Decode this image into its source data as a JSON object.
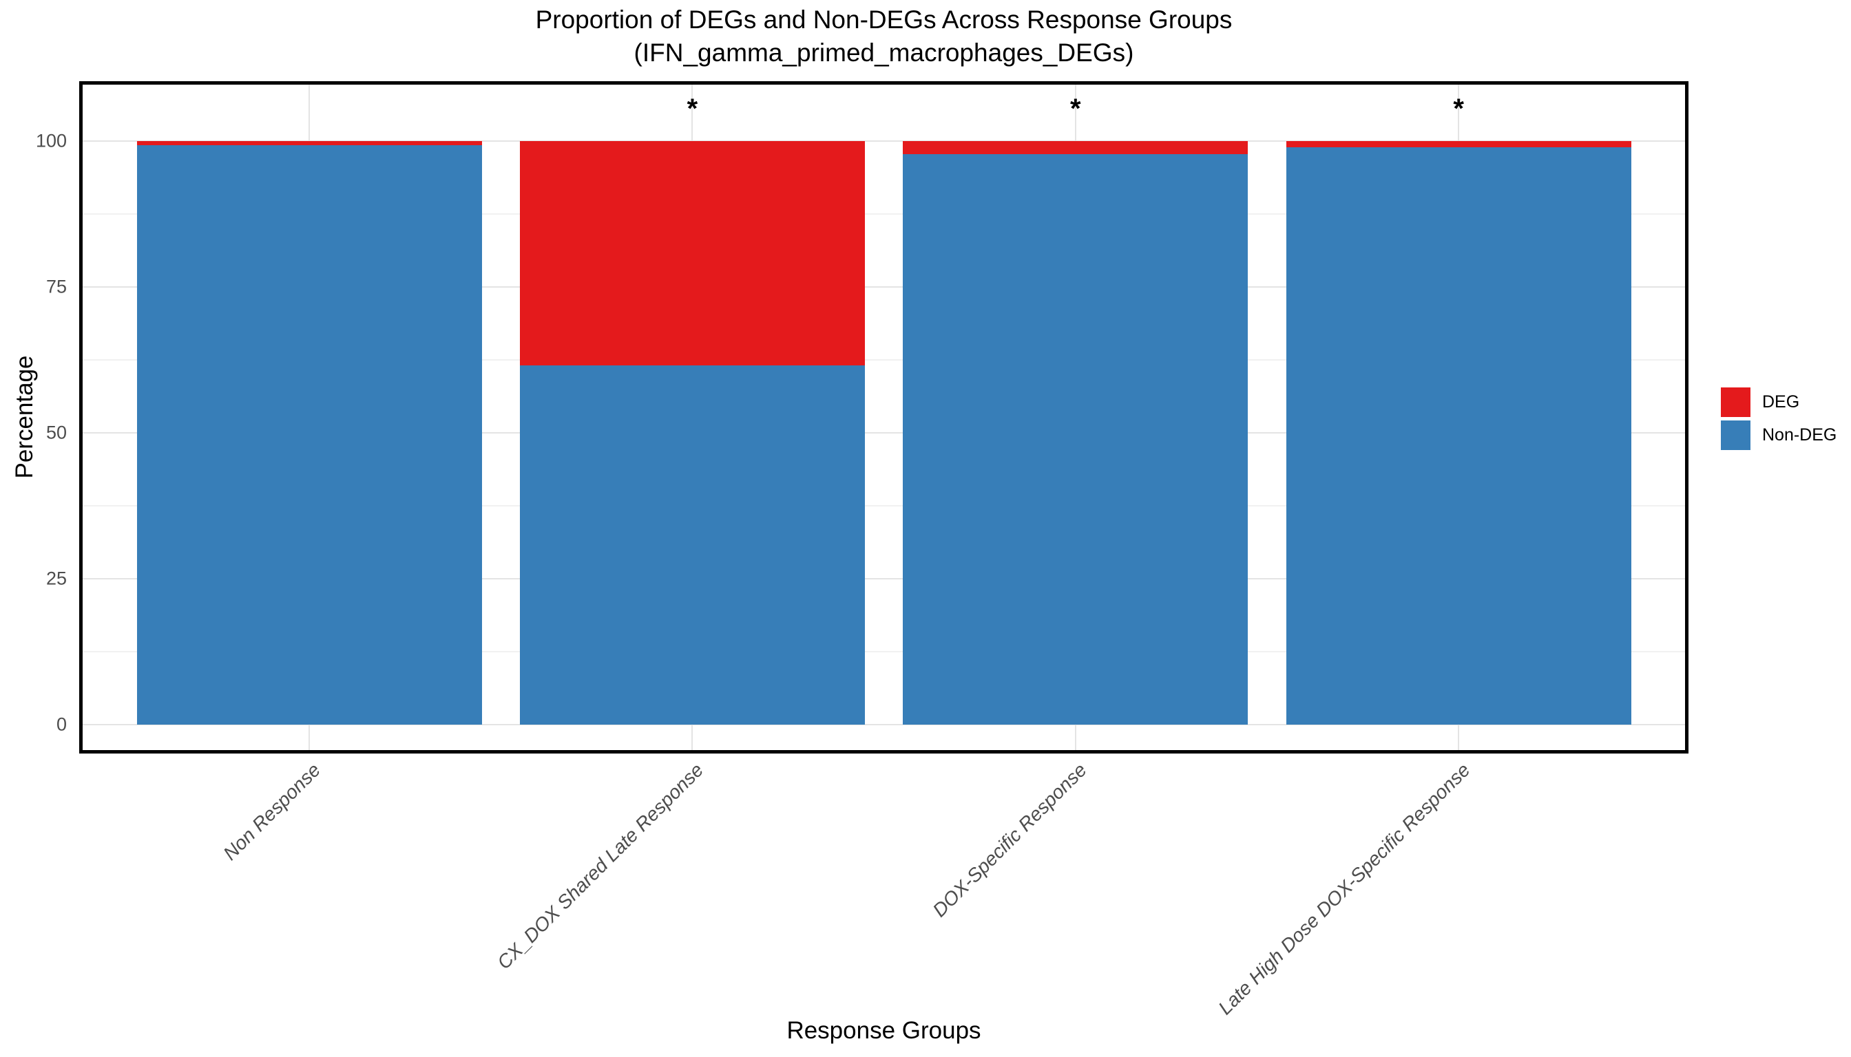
{
  "title": {
    "line1": "Proportion of DEGs and Non-DEGs Across Response Groups",
    "line2": "(IFN_gamma_primed_macrophages_DEGs)"
  },
  "axes": {
    "x_title": "Response Groups",
    "y_title": "Percentage"
  },
  "legend": {
    "items": [
      {
        "label": "DEG",
        "color": "#E41A1C"
      },
      {
        "label": "Non-DEG",
        "color": "#377EB8"
      }
    ]
  },
  "colors": {
    "deg": "#E41A1C",
    "non_deg": "#377EB8",
    "panel_border": "#000000",
    "grid_major": "#e4e4e4",
    "grid_minor": "#f1f1f1",
    "tick_text": "#4d4d4d"
  },
  "chart_data": {
    "type": "bar",
    "stacked": true,
    "title": "Proportion of DEGs and Non-DEGs Across Response Groups (IFN_gamma_primed_macrophages_DEGs)",
    "xlabel": "Response Groups",
    "ylabel": "Percentage",
    "categories": [
      "Non Response",
      "CX_DOX Shared Late Response",
      "DOX-Specific Response",
      "Late High Dose DOX-Specific Response"
    ],
    "series": [
      {
        "name": "DEG",
        "color": "#E41A1C",
        "values": [
          0.7,
          38.4,
          2.2,
          1.1
        ]
      },
      {
        "name": "Non-DEG",
        "color": "#377EB8",
        "values": [
          99.3,
          61.6,
          97.8,
          98.9
        ]
      }
    ],
    "significance": [
      "",
      "*",
      "*",
      "*"
    ],
    "ylim": [
      0,
      100
    ],
    "yticks": [
      0,
      25,
      50,
      75,
      100
    ],
    "y_minor_ticks": [
      12.5,
      37.5,
      62.5,
      87.5
    ],
    "grid": true,
    "legend_position": "right"
  }
}
